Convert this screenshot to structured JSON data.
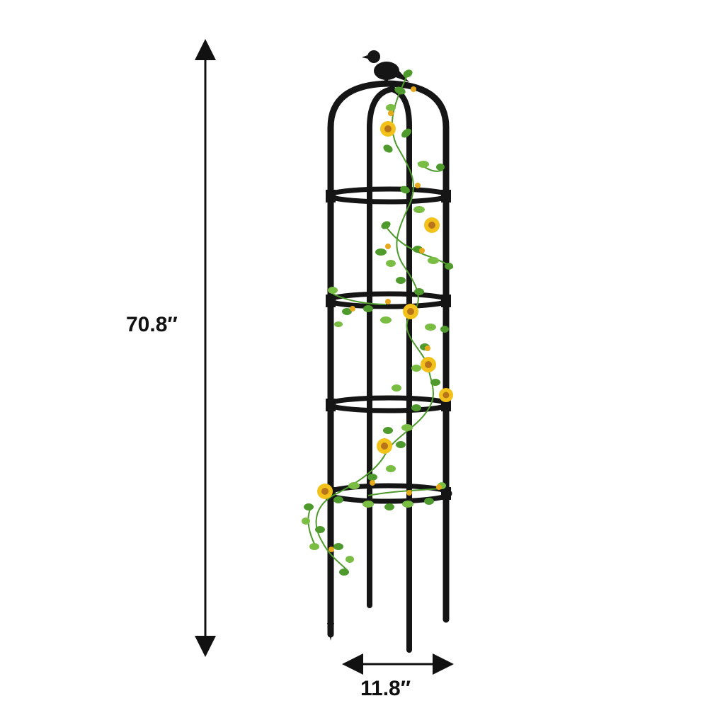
{
  "dimensions": {
    "height_label": "70.8′′",
    "width_label": "11.8′′"
  },
  "colors": {
    "frame": "#151515",
    "leaf": "#4f9a2c",
    "leaf_light": "#79bd43",
    "flower_petal": "#f2c21a",
    "flower_center": "#b8741a",
    "arrow": "#111111"
  },
  "icons": {
    "bird_finial": "bird-finial-icon"
  }
}
